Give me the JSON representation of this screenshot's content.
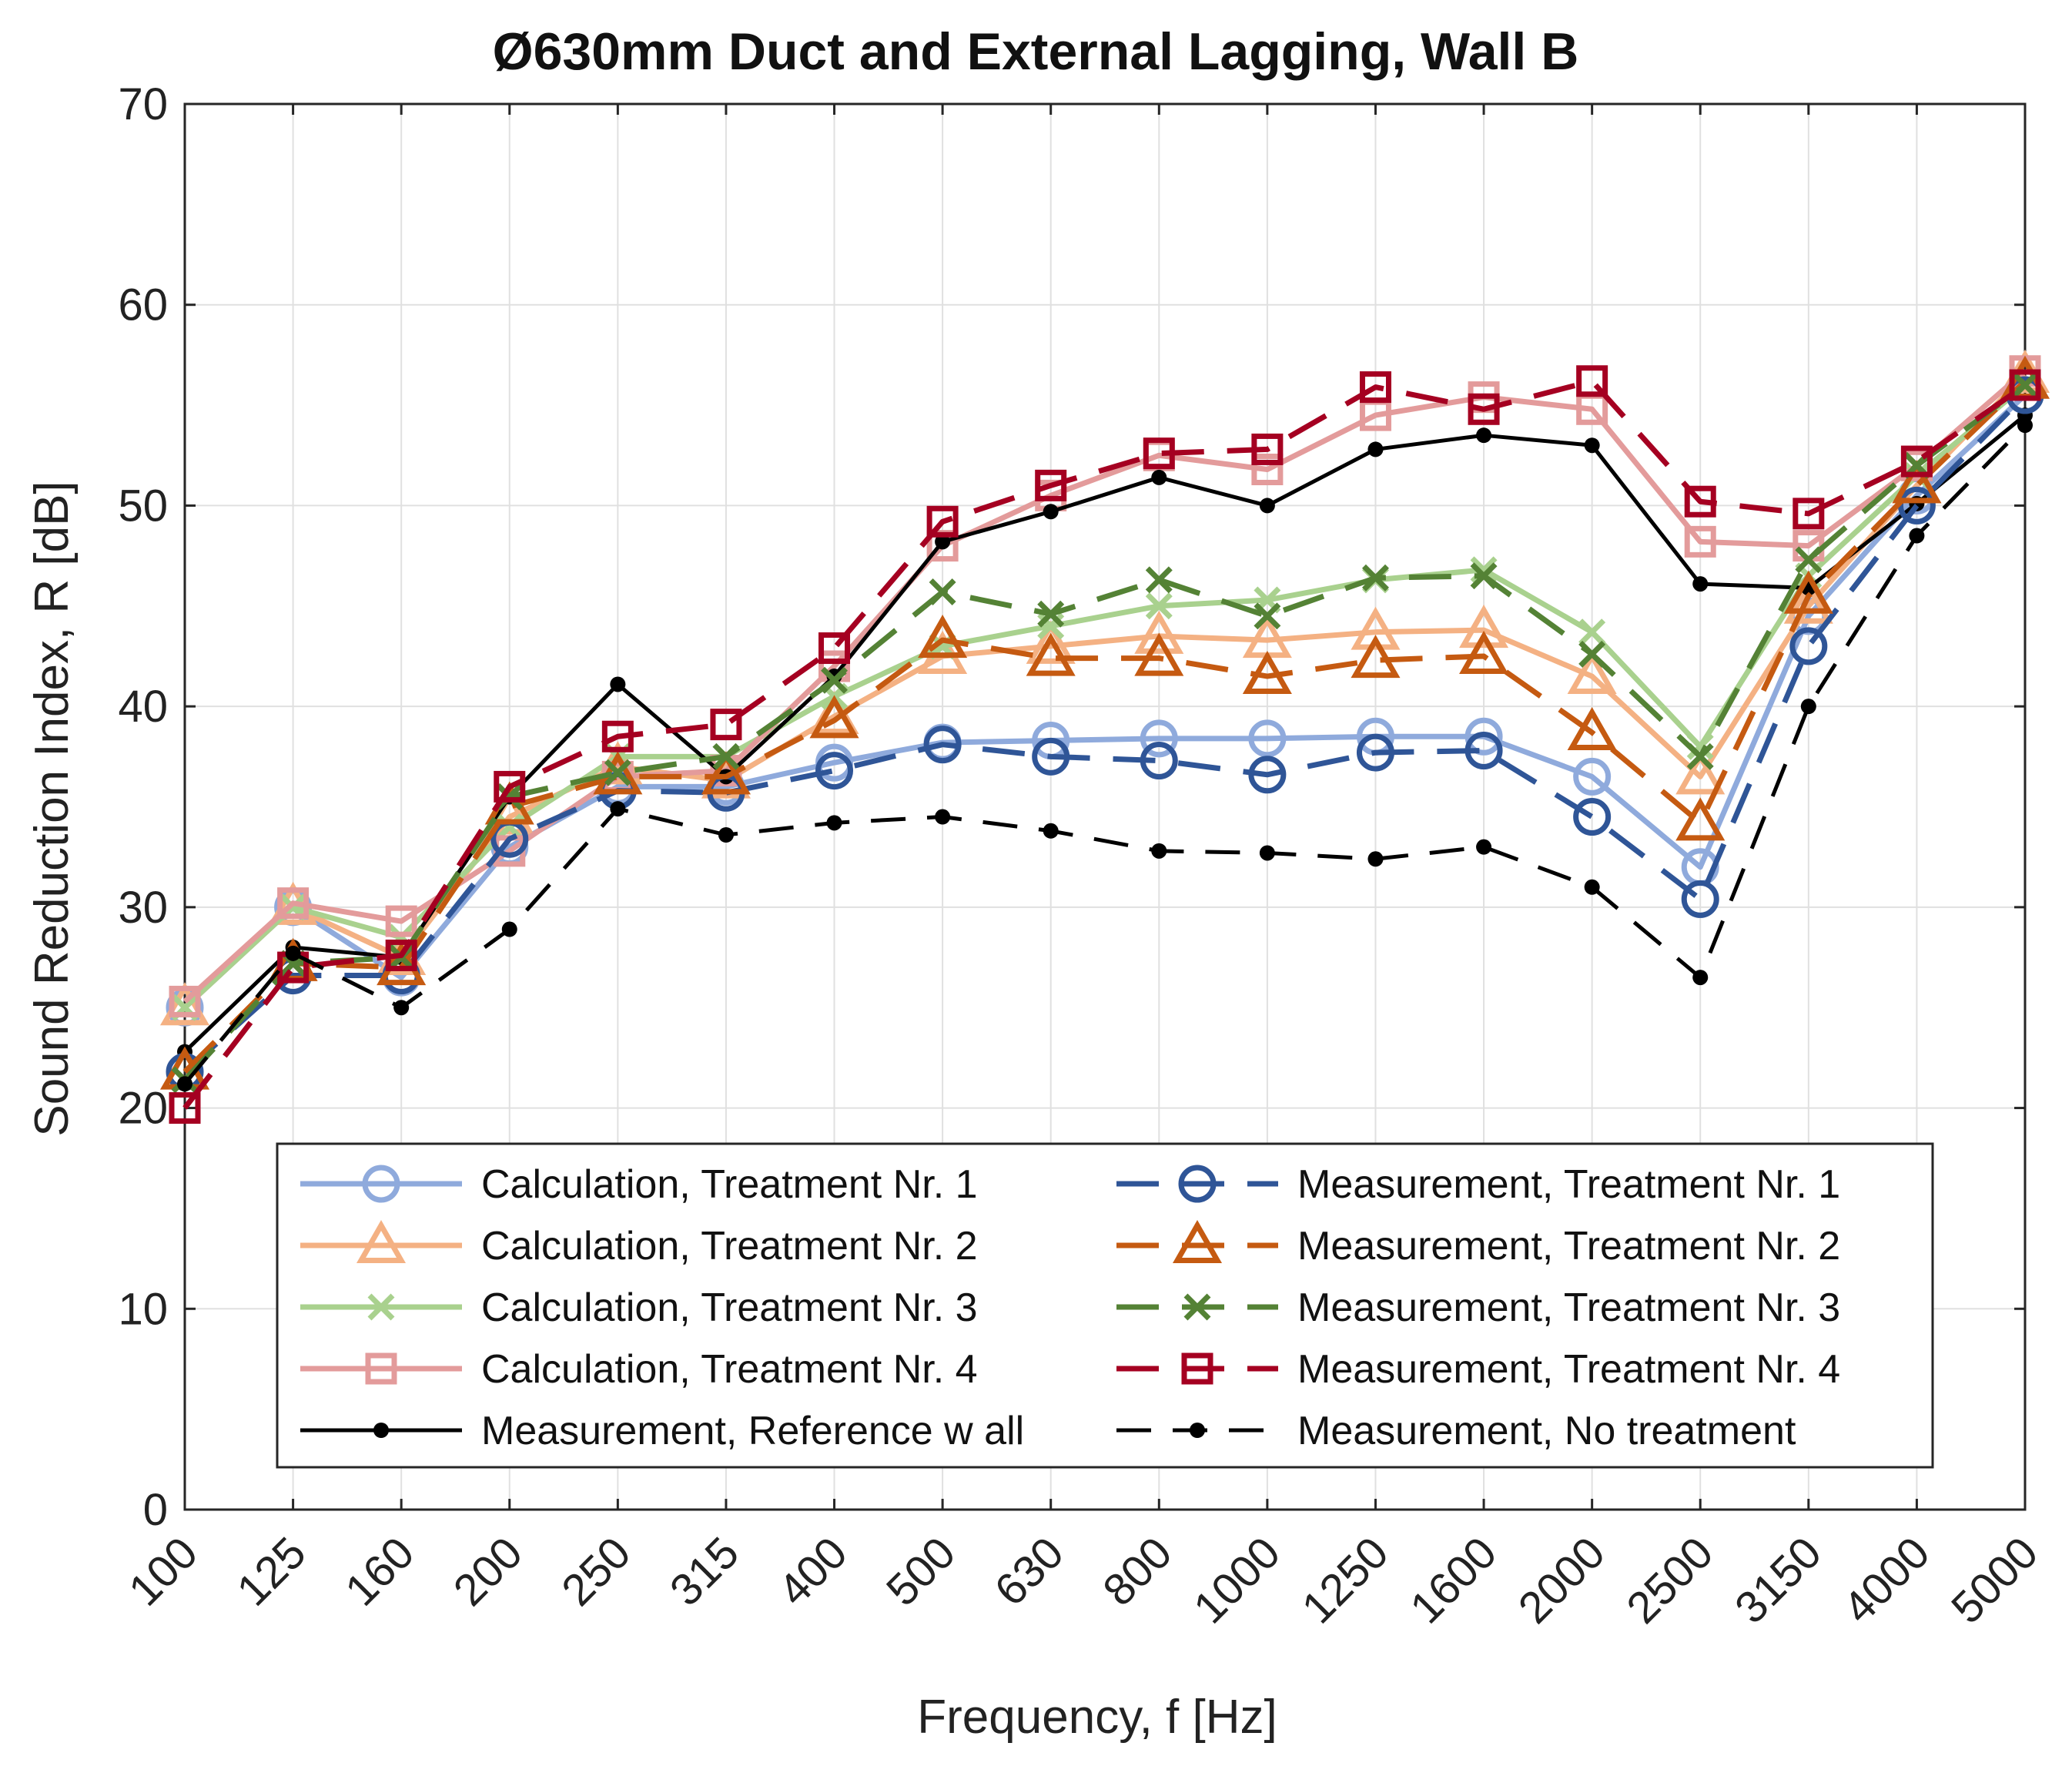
{
  "chart_data": {
    "type": "line",
    "title": "Ø630mm Duct and External Lagging, Wall B",
    "xlabel": "Frequency, f [Hz]",
    "ylabel": "Sound Reduction Index, R [dB]",
    "ylim": [
      0,
      70
    ],
    "yticks": [
      0,
      10,
      20,
      30,
      40,
      50,
      60,
      70
    ],
    "grid": true,
    "legend_position": "lower-center",
    "categories": [
      "100",
      "125",
      "160",
      "200",
      "250",
      "315",
      "400",
      "500",
      "630",
      "800",
      "1000",
      "1250",
      "1600",
      "2000",
      "2500",
      "3150",
      "4000",
      "5000"
    ],
    "series": [
      {
        "name": "Calculation, Treatment Nr. 1",
        "color": "#8faadc",
        "style": "solid",
        "marker": "circle",
        "values": [
          25.0,
          30.0,
          26.5,
          33.0,
          36.0,
          36.0,
          37.2,
          38.2,
          38.3,
          38.4,
          38.4,
          38.5,
          38.5,
          36.5,
          32.0,
          44.5,
          50.5,
          55.5
        ]
      },
      {
        "name": "Calculation, Treatment Nr. 2",
        "color": "#f4b183",
        "style": "solid",
        "marker": "triangle",
        "values": [
          25.0,
          30.0,
          27.5,
          34.5,
          37.0,
          36.3,
          39.5,
          42.5,
          43.0,
          43.5,
          43.3,
          43.7,
          43.8,
          41.5,
          36.5,
          45.0,
          51.0,
          56.5
        ]
      },
      {
        "name": "Calculation, Treatment Nr. 3",
        "color": "#a9d18e",
        "style": "solid",
        "marker": "x",
        "values": [
          25.0,
          30.0,
          28.5,
          34.0,
          37.5,
          37.5,
          40.5,
          43.0,
          44.0,
          45.0,
          45.3,
          46.3,
          46.8,
          43.7,
          38.0,
          46.5,
          51.5,
          56.0
        ]
      },
      {
        "name": "Calculation, Treatment Nr. 4",
        "color": "#e39b9b",
        "style": "solid",
        "marker": "square",
        "values": [
          25.3,
          30.2,
          29.3,
          32.8,
          36.5,
          36.8,
          42.0,
          48.0,
          50.5,
          52.5,
          51.8,
          54.5,
          55.4,
          54.8,
          48.2,
          48.0,
          52.0,
          56.7
        ]
      },
      {
        "name": "Measurement, Reference w all",
        "color": "#000000",
        "style": "solid",
        "marker": "dot",
        "values": [
          22.8,
          28.0,
          27.5,
          35.5,
          41.1,
          36.5,
          41.5,
          48.2,
          49.7,
          51.4,
          50.0,
          52.8,
          53.5,
          53.0,
          46.1,
          45.9,
          50.1,
          54.5
        ]
      },
      {
        "name": "Measurement, Treatment Nr. 1",
        "color": "#2f5597",
        "style": "dashed",
        "marker": "circle",
        "values": [
          21.8,
          26.6,
          26.6,
          33.4,
          35.8,
          35.7,
          36.8,
          38.1,
          37.5,
          37.3,
          36.6,
          37.7,
          37.8,
          34.5,
          30.4,
          43.0,
          50.0,
          55.5
        ]
      },
      {
        "name": "Measurement, Treatment Nr. 2",
        "color": "#c55a11",
        "style": "dashed",
        "marker": "triangle",
        "values": [
          21.8,
          27.2,
          27.0,
          35.0,
          36.5,
          36.5,
          39.3,
          43.3,
          42.4,
          42.4,
          41.5,
          42.3,
          42.5,
          38.7,
          34.2,
          45.5,
          51.0,
          56.2
        ]
      },
      {
        "name": "Measurement, Treatment Nr. 3",
        "color": "#548235",
        "style": "dashed",
        "marker": "x",
        "values": [
          21.4,
          27.2,
          27.5,
          35.5,
          36.7,
          37.5,
          41.3,
          45.7,
          44.6,
          46.3,
          44.5,
          46.4,
          46.5,
          42.6,
          37.5,
          47.3,
          52.0,
          56.0
        ]
      },
      {
        "name": "Measurement, Treatment Nr. 4",
        "color": "#a50021",
        "style": "dashed",
        "marker": "square",
        "values": [
          20.0,
          27.0,
          27.6,
          36.0,
          38.5,
          39.1,
          42.9,
          49.2,
          51.0,
          52.6,
          52.8,
          55.9,
          54.8,
          56.2,
          50.2,
          49.6,
          52.2,
          56.0
        ]
      },
      {
        "name": "Measurement, No treatment",
        "color": "#000000",
        "style": "dashed",
        "marker": "dot",
        "values": [
          21.2,
          27.7,
          25.0,
          28.9,
          34.9,
          33.6,
          34.2,
          34.5,
          33.8,
          32.8,
          32.7,
          32.4,
          33.0,
          31.0,
          26.5,
          40.0,
          48.5,
          54.0
        ]
      }
    ],
    "legend_order": [
      0,
      5,
      1,
      6,
      2,
      7,
      3,
      8,
      4,
      9
    ]
  }
}
